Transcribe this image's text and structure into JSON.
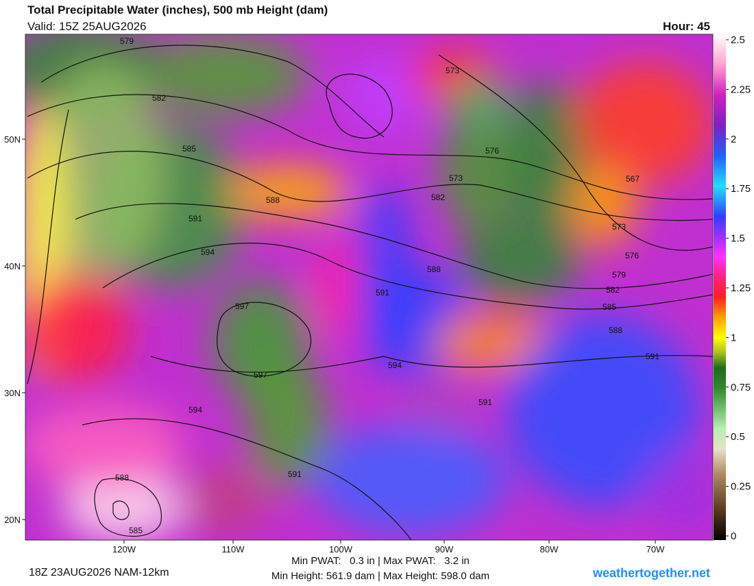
{
  "header": {
    "title": "Total Precipitable Water (inches), 500 mb Height (dam)",
    "valid": "Valid: 15Z 25AUG2026",
    "hour": "Hour: 45"
  },
  "colorbar": {
    "labels": [
      "2.5",
      "2.25",
      "2",
      "1.75",
      "1.5",
      "1.25",
      "1",
      "0.75",
      "0.5",
      "0.25",
      "0"
    ]
  },
  "map": {
    "lon_labels": [
      "120W",
      "110W",
      "100W",
      "90W",
      "80W",
      "70W"
    ],
    "lat_labels": [
      "50N",
      "40N",
      "30N",
      "20N"
    ],
    "contour_labels": [
      "579",
      "582",
      "585",
      "588",
      "591",
      "594",
      "597",
      "597",
      "573",
      "576",
      "573",
      "582",
      "588",
      "591",
      "594",
      "591",
      "594",
      "591",
      "588",
      "585",
      "567",
      "573",
      "576",
      "579",
      "582",
      "585",
      "588",
      "591"
    ]
  },
  "footer": {
    "run": "18Z 23AUG2026 NAM-12km",
    "pwat": "Min PWAT:   0.3 in | Max PWAT:   3.2 in",
    "height": "Min Height: 561.9 dam | Max Height: 598.0 dam",
    "site": "weathertogether.net"
  }
}
